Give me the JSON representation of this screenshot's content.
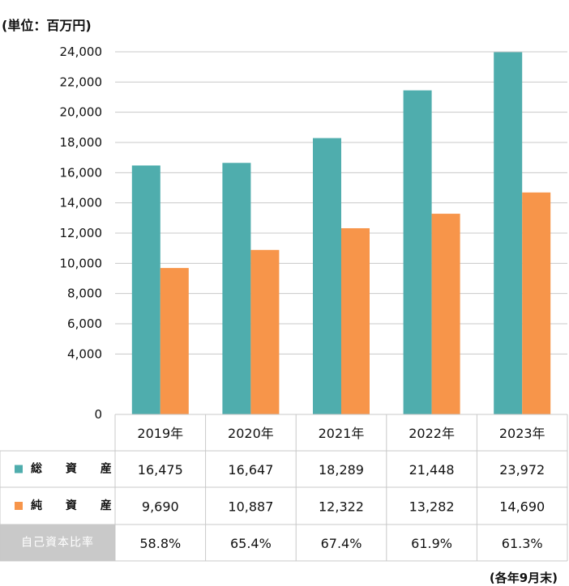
{
  "unit": "(単位：百万円)",
  "note": "(各年9月末)",
  "colors": {
    "total": "#4fadad",
    "net": "#f7954a",
    "grid": "#c8c8c8",
    "ratio_bg": "#c9c9c9"
  },
  "chart_data": {
    "type": "bar",
    "categories": [
      "2019年",
      "2020年",
      "2021年",
      "2022年",
      "2023年"
    ],
    "series": [
      {
        "name": "総資産",
        "label": "総 資 産",
        "values": [
          16475,
          16647,
          18289,
          21448,
          23972
        ]
      },
      {
        "name": "純資産",
        "label": "純 資 産",
        "values": [
          9690,
          10887,
          12322,
          13282,
          14690
        ]
      }
    ],
    "ylim": [
      0,
      24000
    ],
    "yticks": [
      0,
      4000,
      6000,
      8000,
      10000,
      12000,
      14000,
      16000,
      18000,
      20000,
      22000,
      24000
    ],
    "ytick_labels": [
      "0",
      "4,000",
      "6,000",
      "8,000",
      "10,000",
      "12,000",
      "14,000",
      "16,000",
      "18,000",
      "20,000",
      "22,000",
      "24,000"
    ],
    "grid": true
  },
  "table": {
    "rows": [
      {
        "label": "総 資 産",
        "values": [
          "16,475",
          "16,647",
          "18,289",
          "21,448",
          "23,972"
        ]
      },
      {
        "label": "純 資 産",
        "values": [
          "9,690",
          "10,887",
          "12,322",
          "13,282",
          "14,690"
        ]
      },
      {
        "label": "自己資本比率",
        "values": [
          "58.8%",
          "65.4%",
          "67.4%",
          "61.9%",
          "61.3%"
        ]
      }
    ]
  }
}
